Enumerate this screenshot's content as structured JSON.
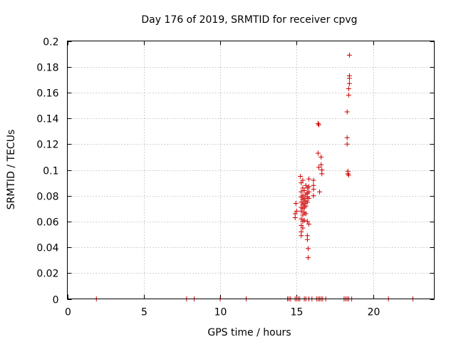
{
  "chart_data": {
    "type": "scatter",
    "title": "Day 176 of 2019, SRMTID for receiver cpvg",
    "xlabel": "GPS time / hours",
    "ylabel": "SRMTID / TECUs",
    "xlim": [
      0,
      24
    ],
    "ylim": [
      0,
      0.2
    ],
    "xticks": [
      0,
      5,
      10,
      15,
      20
    ],
    "yticks": [
      0,
      0.02,
      0.04,
      0.06,
      0.08,
      0.1,
      0.12,
      0.14,
      0.16,
      0.18,
      0.2
    ],
    "ytick_labels": [
      "0",
      "0.02",
      "0.04",
      "0.06",
      "0.08",
      "0.1",
      "0.12",
      "0.14",
      "0.16",
      "0.18",
      "0.2"
    ],
    "grid": true,
    "marker": "+",
    "color": "#cc0000",
    "series": [
      {
        "name": "SRMTID",
        "points": [
          [
            1.9,
            0
          ],
          [
            7.8,
            0
          ],
          [
            8.3,
            0
          ],
          [
            10.0,
            0
          ],
          [
            11.7,
            0
          ],
          [
            14.4,
            0
          ],
          [
            14.5,
            0
          ],
          [
            14.6,
            0
          ],
          [
            14.9,
            0
          ],
          [
            15.0,
            0
          ],
          [
            15.1,
            0
          ],
          [
            15.2,
            0
          ],
          [
            15.5,
            0
          ],
          [
            15.6,
            0
          ],
          [
            15.8,
            0
          ],
          [
            16.0,
            0
          ],
          [
            16.3,
            0
          ],
          [
            16.4,
            0
          ],
          [
            16.5,
            0
          ],
          [
            16.6,
            0
          ],
          [
            16.7,
            0
          ],
          [
            16.9,
            0
          ],
          [
            18.1,
            0
          ],
          [
            18.2,
            0
          ],
          [
            18.3,
            0
          ],
          [
            18.4,
            0
          ],
          [
            18.6,
            0
          ],
          [
            21.0,
            0
          ],
          [
            22.6,
            0
          ],
          [
            14.9,
            0.063
          ],
          [
            14.9,
            0.066
          ],
          [
            14.95,
            0.074
          ],
          [
            15.0,
            0.068
          ],
          [
            15.25,
            0.095
          ],
          [
            15.3,
            0.09
          ],
          [
            15.3,
            0.083
          ],
          [
            15.3,
            0.079
          ],
          [
            15.3,
            0.075
          ],
          [
            15.3,
            0.071
          ],
          [
            15.3,
            0.068
          ],
          [
            15.3,
            0.062
          ],
          [
            15.3,
            0.057
          ],
          [
            15.3,
            0.052
          ],
          [
            15.3,
            0.049
          ],
          [
            15.4,
            0.092
          ],
          [
            15.4,
            0.086
          ],
          [
            15.4,
            0.08
          ],
          [
            15.4,
            0.077
          ],
          [
            15.4,
            0.073
          ],
          [
            15.4,
            0.07
          ],
          [
            15.4,
            0.065
          ],
          [
            15.4,
            0.06
          ],
          [
            15.4,
            0.055
          ],
          [
            15.5,
            0.084
          ],
          [
            15.5,
            0.078
          ],
          [
            15.5,
            0.074
          ],
          [
            15.5,
            0.071
          ],
          [
            15.5,
            0.067
          ],
          [
            15.5,
            0.061
          ],
          [
            15.6,
            0.088
          ],
          [
            15.6,
            0.081
          ],
          [
            15.6,
            0.076
          ],
          [
            15.6,
            0.072
          ],
          [
            15.6,
            0.066
          ],
          [
            15.7,
            0.086
          ],
          [
            15.7,
            0.082
          ],
          [
            15.7,
            0.079
          ],
          [
            15.7,
            0.075
          ],
          [
            15.7,
            0.06
          ],
          [
            15.7,
            0.049
          ],
          [
            15.7,
            0.046
          ],
          [
            15.75,
            0.039
          ],
          [
            15.75,
            0.032
          ],
          [
            15.8,
            0.093
          ],
          [
            15.8,
            0.087
          ],
          [
            15.8,
            0.083
          ],
          [
            15.8,
            0.078
          ],
          [
            15.8,
            0.058
          ],
          [
            16.1,
            0.092
          ],
          [
            16.1,
            0.088
          ],
          [
            16.1,
            0.085
          ],
          [
            16.1,
            0.08
          ],
          [
            16.4,
            0.136
          ],
          [
            16.45,
            0.135
          ],
          [
            16.4,
            0.113
          ],
          [
            16.45,
            0.102
          ],
          [
            16.5,
            0.083
          ],
          [
            16.6,
            0.11
          ],
          [
            16.6,
            0.104
          ],
          [
            16.65,
            0.1
          ],
          [
            16.65,
            0.097
          ],
          [
            18.3,
            0.145
          ],
          [
            18.3,
            0.125
          ],
          [
            18.3,
            0.12
          ],
          [
            18.35,
            0.099
          ],
          [
            18.35,
            0.097
          ],
          [
            18.4,
            0.096
          ],
          [
            18.4,
            0.158
          ],
          [
            18.4,
            0.163
          ],
          [
            18.45,
            0.167
          ],
          [
            18.45,
            0.171
          ],
          [
            18.45,
            0.173
          ],
          [
            18.45,
            0.189
          ]
        ]
      }
    ]
  }
}
